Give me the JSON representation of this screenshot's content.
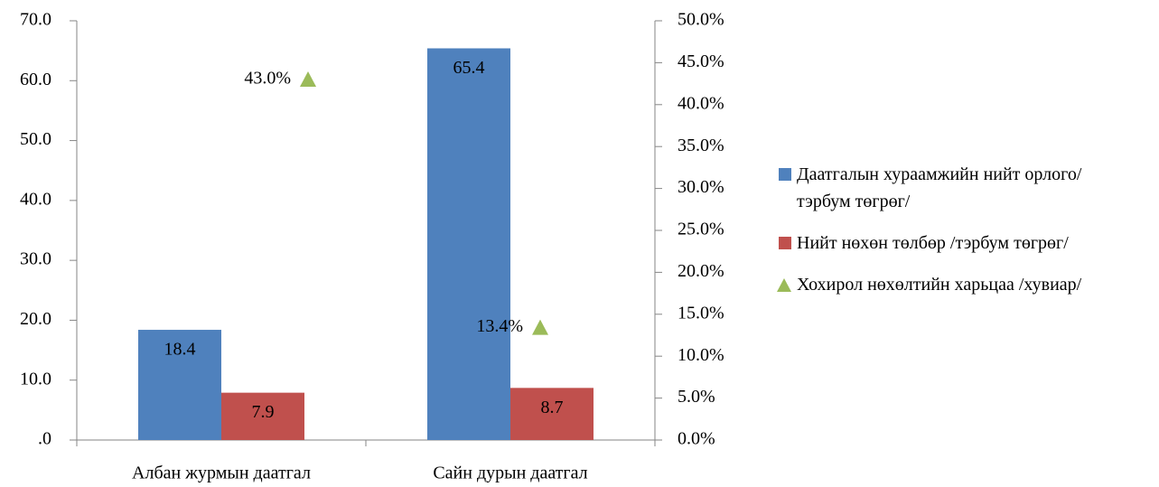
{
  "chart_data": {
    "type": "bar",
    "categories": [
      "Албан журмын даатгал",
      "Сайн дурын даатгал"
    ],
    "series": [
      {
        "name": "Даатгалын хураамжийн нийт орлого/тэрбум төгрөг/",
        "color": "#4f81bd",
        "values": [
          18.4,
          65.4
        ]
      },
      {
        "name": "Нийт нөхөн төлбөр /тэрбум төгрөг/",
        "color": "#c0504d",
        "values": [
          7.9,
          8.7
        ]
      },
      {
        "name": "Хохирол нөхөлтийн харьцаа /хувиар/",
        "color": "#9bbb59",
        "values": [
          43.0,
          13.4
        ],
        "value_labels": [
          "43.0%",
          "13.4%"
        ],
        "axis": "y2",
        "marker": "triangle"
      }
    ],
    "ylim": [
      0,
      70
    ],
    "yticks": [
      {
        "value": 0,
        "label": ".0"
      },
      {
        "value": 10,
        "label": "10.0"
      },
      {
        "value": 20,
        "label": "20.0"
      },
      {
        "value": 30,
        "label": "30.0"
      },
      {
        "value": 40,
        "label": "40.0"
      },
      {
        "value": 50,
        "label": "50.0"
      },
      {
        "value": 60,
        "label": "60.0"
      },
      {
        "value": 70,
        "label": "70.0"
      }
    ],
    "y2lim": [
      0,
      50
    ],
    "y2ticks": [
      {
        "value": 0,
        "label": "0.0%"
      },
      {
        "value": 5,
        "label": "5.0%"
      },
      {
        "value": 10,
        "label": "10.0%"
      },
      {
        "value": 15,
        "label": "15.0%"
      },
      {
        "value": 20,
        "label": "20.0%"
      },
      {
        "value": 25,
        "label": "25.0%"
      },
      {
        "value": 30,
        "label": "30.0%"
      },
      {
        "value": 35,
        "label": "35.0%"
      },
      {
        "value": 40,
        "label": "40.0%"
      },
      {
        "value": 45,
        "label": "45.0%"
      },
      {
        "value": 50,
        "label": "50.0%"
      }
    ],
    "grid": false,
    "legend": "right"
  }
}
